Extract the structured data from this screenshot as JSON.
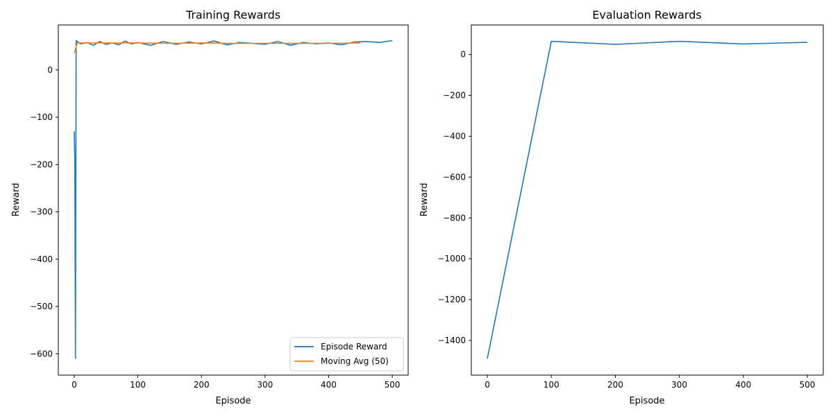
{
  "chart_data": [
    {
      "type": "line",
      "title": "Training Rewards",
      "xlabel": "Episode",
      "ylabel": "Reward",
      "xlim": [
        -25,
        525
      ],
      "ylim": [
        -645,
        95
      ],
      "xticks": [
        0,
        100,
        200,
        300,
        400,
        500
      ],
      "yticks": [
        -600,
        -500,
        -400,
        -300,
        -200,
        -100,
        0
      ],
      "grid": false,
      "legend": "lower-right",
      "series": [
        {
          "name": "Episode Reward",
          "color": "#1f77b4",
          "x": [
            0,
            1,
            2,
            3,
            10,
            20,
            30,
            40,
            50,
            60,
            70,
            80,
            90,
            100,
            120,
            140,
            160,
            180,
            200,
            220,
            240,
            260,
            280,
            300,
            320,
            340,
            360,
            380,
            400,
            420,
            440,
            460,
            480,
            500
          ],
          "y": [
            -130,
            -190,
            -610,
            62,
            55,
            58,
            52,
            60,
            54,
            57,
            53,
            61,
            55,
            58,
            52,
            60,
            54,
            59,
            55,
            61,
            53,
            58,
            56,
            54,
            60,
            52,
            58,
            55,
            57,
            53,
            59,
            60,
            58,
            62
          ]
        },
        {
          "name": "Moving Avg (50)",
          "color": "#ff7f0e",
          "x": [
            0,
            5,
            50,
            100,
            150,
            200,
            250,
            300,
            350,
            400,
            450
          ],
          "y": [
            35,
            57,
            57,
            57,
            56,
            57,
            56,
            56,
            56,
            56,
            57
          ]
        }
      ]
    },
    {
      "type": "line",
      "title": "Evaluation Rewards",
      "xlabel": "Episode",
      "ylabel": "Reward",
      "xlim": [
        -25,
        525
      ],
      "ylim": [
        -1570,
        145
      ],
      "xticks": [
        0,
        100,
        200,
        300,
        400,
        500
      ],
      "yticks": [
        -1400,
        -1200,
        -1000,
        -800,
        -600,
        -400,
        -200,
        0
      ],
      "grid": false,
      "series": [
        {
          "color": "#1f77b4",
          "x": [
            0,
            100,
            200,
            300,
            400,
            500
          ],
          "y": [
            -1490,
            65,
            50,
            65,
            52,
            60
          ]
        }
      ]
    }
  ]
}
